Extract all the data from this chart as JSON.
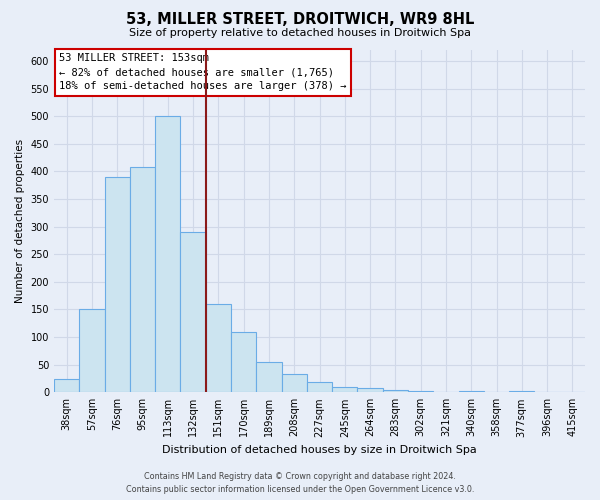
{
  "title": "53, MILLER STREET, DROITWICH, WR9 8HL",
  "subtitle": "Size of property relative to detached houses in Droitwich Spa",
  "xlabel": "Distribution of detached houses by size in Droitwich Spa",
  "ylabel": "Number of detached properties",
  "bin_labels": [
    "38sqm",
    "57sqm",
    "76sqm",
    "95sqm",
    "113sqm",
    "132sqm",
    "151sqm",
    "170sqm",
    "189sqm",
    "208sqm",
    "227sqm",
    "245sqm",
    "264sqm",
    "283sqm",
    "302sqm",
    "321sqm",
    "340sqm",
    "358sqm",
    "377sqm",
    "396sqm",
    "415sqm"
  ],
  "bar_heights": [
    25,
    150,
    390,
    408,
    500,
    290,
    160,
    110,
    55,
    33,
    18,
    10,
    8,
    5,
    3,
    0,
    2,
    0,
    3,
    0,
    0
  ],
  "bar_color": "#cce4f0",
  "bar_edge_color": "#6aace6",
  "vline_x": 6,
  "vline_color": "#8b1a1a",
  "ylim": [
    0,
    620
  ],
  "yticks": [
    0,
    50,
    100,
    150,
    200,
    250,
    300,
    350,
    400,
    450,
    500,
    550,
    600
  ],
  "annotation_title": "53 MILLER STREET: 153sqm",
  "annotation_line1": "← 82% of detached houses are smaller (1,765)",
  "annotation_line2": "18% of semi-detached houses are larger (378) →",
  "box_facecolor": "#ffffff",
  "box_edgecolor": "#cc0000",
  "background_color": "#e8eef8",
  "grid_color": "#d0d8e8",
  "footer_line1": "Contains HM Land Registry data © Crown copyright and database right 2024.",
  "footer_line2": "Contains public sector information licensed under the Open Government Licence v3.0."
}
